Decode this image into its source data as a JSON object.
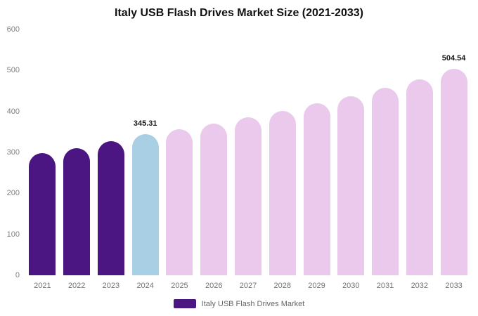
{
  "title": "Italy USB Flash Drives Market Size (2021-2033)",
  "legend": {
    "label": "Italy USB Flash Drives Market",
    "swatch_color": "#4b1582"
  },
  "colors": {
    "historical_bar": "#4b1582",
    "current_year_bar": "#a9cfe5",
    "forecast_bar": "#eac9ec",
    "background": "#ffffff"
  },
  "chart_data": {
    "type": "bar",
    "title": "Italy USB Flash Drives Market Size (2021-2033)",
    "categories": [
      "2021",
      "2022",
      "2023",
      "2024",
      "2025",
      "2026",
      "2027",
      "2028",
      "2029",
      "2030",
      "2031",
      "2032",
      "2033"
    ],
    "values": [
      298,
      311,
      327,
      345.31,
      356,
      370,
      386,
      402,
      420,
      438,
      458,
      478,
      504.54
    ],
    "value_labels": [
      "",
      "",
      "",
      "345.31",
      "",
      "",
      "",
      "",
      "",
      "",
      "",
      "",
      "504.54"
    ],
    "bar_colors": [
      "#4b1582",
      "#4b1582",
      "#4b1582",
      "#a9cfe5",
      "#eac9ec",
      "#eac9ec",
      "#eac9ec",
      "#eac9ec",
      "#eac9ec",
      "#eac9ec",
      "#eac9ec",
      "#eac9ec",
      "#eac9ec"
    ],
    "xlabel": "",
    "ylabel": "",
    "ylim": [
      0,
      600
    ],
    "yticks": [
      0,
      100,
      200,
      300,
      400,
      500,
      600
    ],
    "grid": false,
    "legend_position": "bottom"
  }
}
